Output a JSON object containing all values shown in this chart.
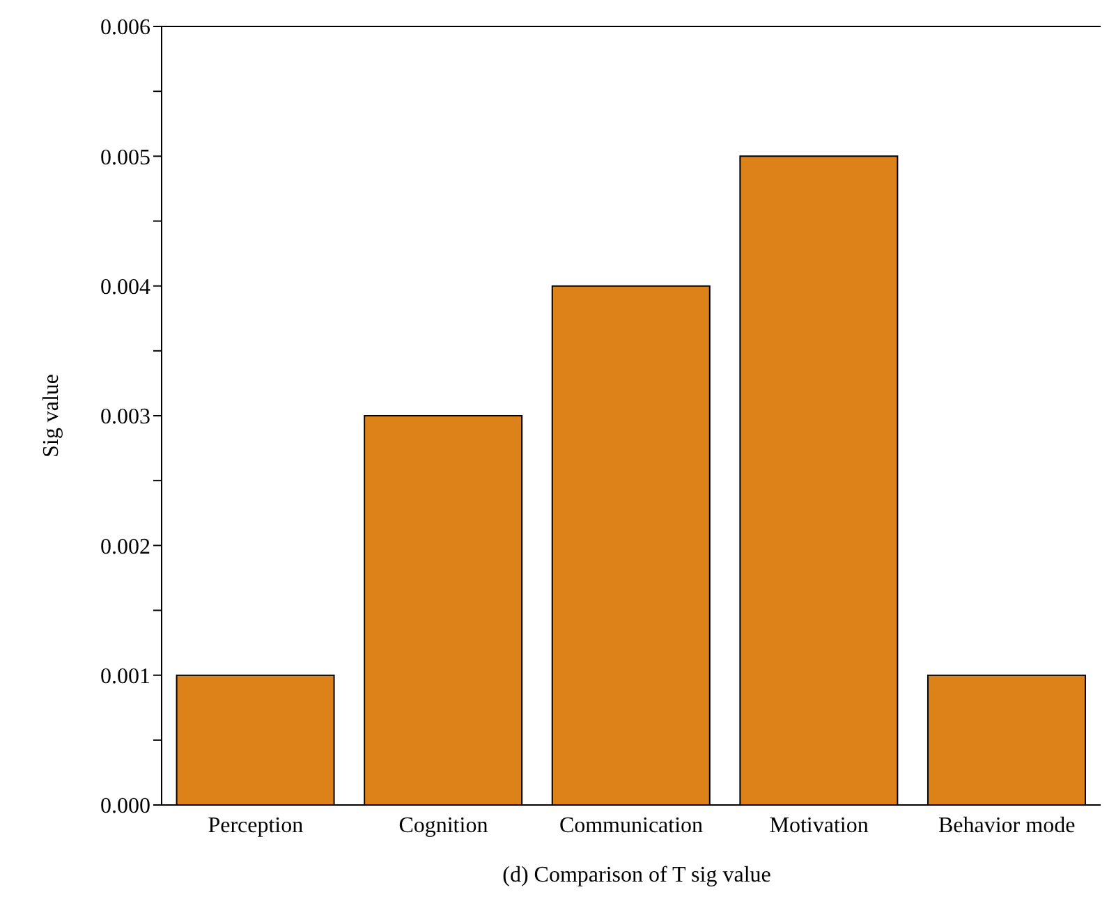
{
  "chart_data": {
    "type": "bar",
    "title": "(d) Comparison of T sig value",
    "ylabel": "Sig value",
    "categories": [
      "Perception",
      "Cognition",
      "Communication",
      "Motivation",
      "Behavior mode"
    ],
    "values": [
      0.001,
      0.003,
      0.004,
      0.005,
      0.001
    ],
    "color": "#dc8219",
    "ylim": [
      0,
      0.006
    ],
    "yticks": [
      {
        "value": 0,
        "label": "0.000"
      },
      {
        "value": 0.0005,
        "label": null
      },
      {
        "value": 0.001,
        "label": "0.001"
      },
      {
        "value": 0.0015,
        "label": null
      },
      {
        "value": 0.002,
        "label": "0.002"
      },
      {
        "value": 0.0025,
        "label": null
      },
      {
        "value": 0.003,
        "label": "0.003"
      },
      {
        "value": 0.0035,
        "label": null
      },
      {
        "value": 0.004,
        "label": "0.004"
      },
      {
        "value": 0.0045,
        "label": null
      },
      {
        "value": 0.005,
        "label": "0.005"
      },
      {
        "value": 0.0055,
        "label": null
      },
      {
        "value": 0.006,
        "label": "0.006"
      }
    ],
    "grid": false,
    "legend": false
  }
}
